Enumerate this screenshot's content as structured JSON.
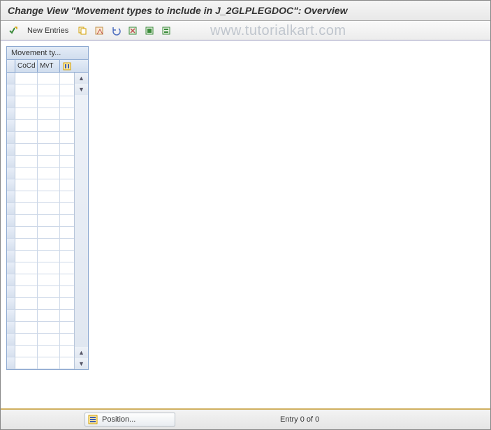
{
  "title": "Change View \"Movement types to include in J_2GLPLEGDOC\": Overview",
  "toolbar": {
    "new_entries_label": "New Entries",
    "icons": {
      "check": {
        "name": "check-icon",
        "color": "#3a8a3a",
        "accent": "#d4a000"
      },
      "copy": {
        "name": "copy-icon",
        "color": "#d4a000"
      },
      "save_var": {
        "name": "save-variant-icon",
        "color": "#c05050"
      },
      "undo": {
        "name": "undo-icon",
        "color": "#5070c0"
      },
      "delete": {
        "name": "delete-icon",
        "color": "#3a8a3a",
        "accent": "#c05050"
      },
      "select_all": {
        "name": "select-all-icon",
        "color": "#3a8a3a"
      },
      "select_block": {
        "name": "select-block-icon",
        "color": "#3a8a3a"
      }
    }
  },
  "watermark": "www.tutorialkart.com",
  "table": {
    "title": "Movement ty...",
    "columns": {
      "sel": "",
      "cocd": "CoCd",
      "mvt": "MvT"
    },
    "config_icon_colors": {
      "outer": "#d4a000",
      "inner": "#4060b0"
    },
    "row_count": 25,
    "rows": [
      {
        "cocd": "",
        "mvt": ""
      },
      {
        "cocd": "",
        "mvt": ""
      },
      {
        "cocd": "",
        "mvt": ""
      },
      {
        "cocd": "",
        "mvt": ""
      },
      {
        "cocd": "",
        "mvt": ""
      },
      {
        "cocd": "",
        "mvt": ""
      },
      {
        "cocd": "",
        "mvt": ""
      },
      {
        "cocd": "",
        "mvt": ""
      },
      {
        "cocd": "",
        "mvt": ""
      },
      {
        "cocd": "",
        "mvt": ""
      },
      {
        "cocd": "",
        "mvt": ""
      },
      {
        "cocd": "",
        "mvt": ""
      },
      {
        "cocd": "",
        "mvt": ""
      },
      {
        "cocd": "",
        "mvt": ""
      },
      {
        "cocd": "",
        "mvt": ""
      },
      {
        "cocd": "",
        "mvt": ""
      },
      {
        "cocd": "",
        "mvt": ""
      },
      {
        "cocd": "",
        "mvt": ""
      },
      {
        "cocd": "",
        "mvt": ""
      },
      {
        "cocd": "",
        "mvt": ""
      },
      {
        "cocd": "",
        "mvt": ""
      },
      {
        "cocd": "",
        "mvt": ""
      },
      {
        "cocd": "",
        "mvt": ""
      },
      {
        "cocd": "",
        "mvt": ""
      },
      {
        "cocd": "",
        "mvt": ""
      }
    ]
  },
  "footer": {
    "position_label": "Position...",
    "position_icon_color": "#d4a000",
    "entry_text": "Entry 0 of 0"
  },
  "colors": {
    "title_bg": "#ececec",
    "toolbar_border": "#99b",
    "table_border": "#8ca8d0",
    "header_bg": "#d8e2ef",
    "row_border": "#cdd8e8"
  }
}
